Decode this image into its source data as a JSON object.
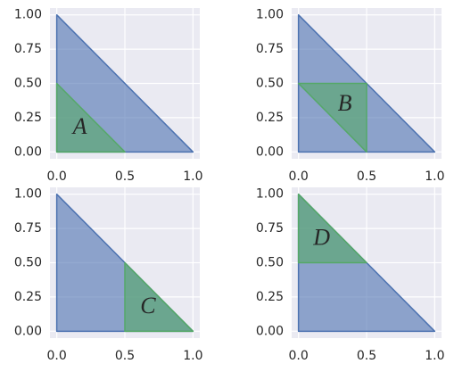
{
  "chart_data": [
    {
      "type": "polygon",
      "xlim": [
        -0.05,
        1.05
      ],
      "ylim": [
        -0.05,
        1.05
      ],
      "grid": true,
      "alpha": 0.6,
      "xticks": [
        {
          "value": 0,
          "label": "0.0"
        },
        {
          "value": 0.5,
          "label": "0.5"
        },
        {
          "value": 1,
          "label": "1.0"
        }
      ],
      "yticks": [
        {
          "value": 0,
          "label": "0.00"
        },
        {
          "value": 0.25,
          "label": "0.25"
        },
        {
          "value": 0.5,
          "label": "0.50"
        },
        {
          "value": 0.75,
          "label": "0.75"
        },
        {
          "value": 1,
          "label": "1.00"
        }
      ],
      "shapes": [
        {
          "color": "#4c72b0",
          "x": [
            0,
            1,
            0
          ],
          "y": [
            0,
            0,
            1
          ]
        },
        {
          "color": "#55a868",
          "x": [
            0,
            0.5,
            0
          ],
          "y": [
            0,
            0,
            0.5
          ]
        }
      ],
      "annotations": [
        {
          "text": "A",
          "x": 0.17,
          "y": 0.17
        }
      ]
    },
    {
      "type": "polygon",
      "xlim": [
        -0.05,
        1.05
      ],
      "ylim": [
        -0.05,
        1.05
      ],
      "grid": true,
      "alpha": 0.6,
      "xticks": [
        {
          "value": 0,
          "label": "0.0"
        },
        {
          "value": 0.5,
          "label": "0.5"
        },
        {
          "value": 1,
          "label": "1.0"
        }
      ],
      "yticks": [
        {
          "value": 0,
          "label": "0.00"
        },
        {
          "value": 0.25,
          "label": "0.25"
        },
        {
          "value": 0.5,
          "label": "0.50"
        },
        {
          "value": 0.75,
          "label": "0.75"
        },
        {
          "value": 1,
          "label": "1.00"
        }
      ],
      "shapes": [
        {
          "color": "#4c72b0",
          "x": [
            0,
            1,
            0
          ],
          "y": [
            0,
            0,
            1
          ]
        },
        {
          "color": "#55a868",
          "x": [
            0,
            0.5,
            0.5
          ],
          "y": [
            0.5,
            0.5,
            0
          ]
        }
      ],
      "annotations": [
        {
          "text": "B",
          "x": 0.34,
          "y": 0.34
        }
      ]
    },
    {
      "type": "polygon",
      "xlim": [
        -0.05,
        1.05
      ],
      "ylim": [
        -0.05,
        1.05
      ],
      "grid": true,
      "alpha": 0.6,
      "xticks": [
        {
          "value": 0,
          "label": "0.0"
        },
        {
          "value": 0.5,
          "label": "0.5"
        },
        {
          "value": 1,
          "label": "1.0"
        }
      ],
      "yticks": [
        {
          "value": 0,
          "label": "0.00"
        },
        {
          "value": 0.25,
          "label": "0.25"
        },
        {
          "value": 0.5,
          "label": "0.50"
        },
        {
          "value": 0.75,
          "label": "0.75"
        },
        {
          "value": 1,
          "label": "1.00"
        }
      ],
      "shapes": [
        {
          "color": "#4c72b0",
          "x": [
            0,
            1,
            0
          ],
          "y": [
            0,
            0,
            1
          ]
        },
        {
          "color": "#55a868",
          "x": [
            0.5,
            1,
            0.5
          ],
          "y": [
            0,
            0,
            0.5
          ]
        }
      ],
      "annotations": [
        {
          "text": "C",
          "x": 0.67,
          "y": 0.17
        }
      ]
    },
    {
      "type": "polygon",
      "xlim": [
        -0.05,
        1.05
      ],
      "ylim": [
        -0.05,
        1.05
      ],
      "grid": true,
      "alpha": 0.6,
      "xticks": [
        {
          "value": 0,
          "label": "0.0"
        },
        {
          "value": 0.5,
          "label": "0.5"
        },
        {
          "value": 1,
          "label": "1.0"
        }
      ],
      "yticks": [
        {
          "value": 0,
          "label": "0.00"
        },
        {
          "value": 0.25,
          "label": "0.25"
        },
        {
          "value": 0.5,
          "label": "0.50"
        },
        {
          "value": 0.75,
          "label": "0.75"
        },
        {
          "value": 1,
          "label": "1.00"
        }
      ],
      "shapes": [
        {
          "color": "#4c72b0",
          "x": [
            0,
            1,
            0
          ],
          "y": [
            0,
            0,
            1
          ]
        },
        {
          "color": "#55a868",
          "x": [
            0,
            0.5,
            0
          ],
          "y": [
            0.5,
            0.5,
            1
          ]
        }
      ],
      "annotations": [
        {
          "text": "D",
          "x": 0.17,
          "y": 0.67
        }
      ]
    }
  ]
}
